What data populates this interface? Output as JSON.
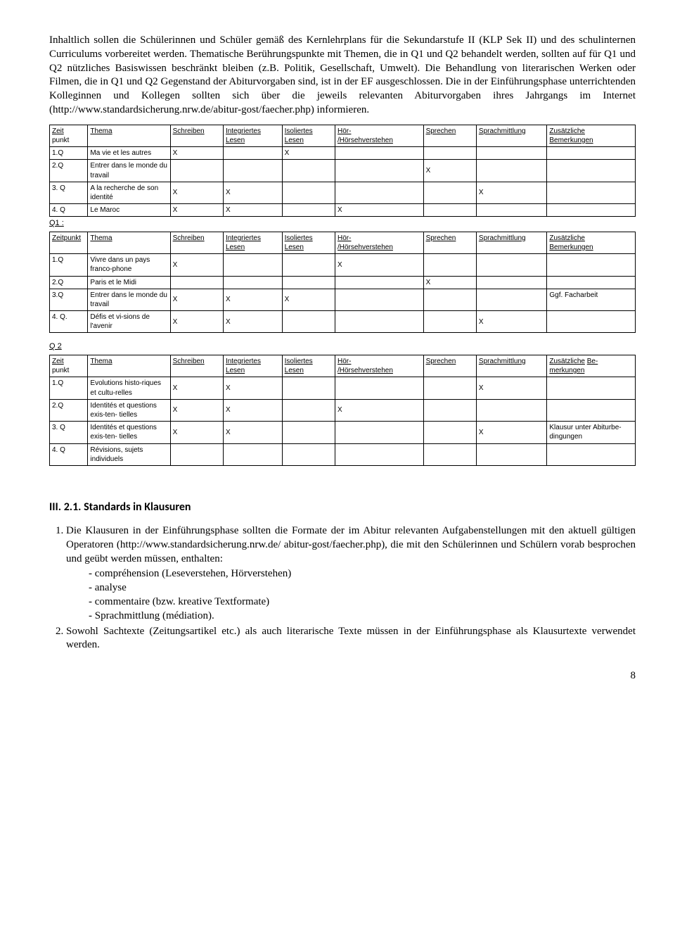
{
  "intro": "Inhaltlich sollen die Schülerinnen und Schüler gemäß des Kernlehrplans für die Sekundarstufe II (KLP Sek II) und des schulinternen Curriculums vorbereitet werden. Thematische Berührungspunkte mit Themen, die in Q1 und Q2 behandelt werden, sollten auf für Q1 und Q2 nützliches Basiswissen beschränkt bleiben (z.B. Politik, Gesellschaft, Umwelt). Die Behandlung von literarischen Werken oder Filmen, die in Q1 und Q2 Gegenstand der Abiturvorgaben sind, ist in der EF ausgeschlossen. Die in der Einführungsphase unterrichtenden Kolleginnen und Kollegen sollten sich über die jeweils relevanten Abiturvorgaben ihres Jahrgangs im Internet (http://www.standardsicherung.nrw.de/abitur-gost/faecher.php) informieren.",
  "headers": {
    "zp": "Zeit\npunkt",
    "zp_full": "Zeitpunkt",
    "thema": "Thema",
    "schreiben": "Schreiben",
    "int_lesen": "Integriertes Lesen",
    "iso_lesen": "Isoliertes Lesen",
    "hoer": "Hör-/Hörsehverstehen",
    "sprechen": "Sprechen",
    "sprachm": "Sprachmittlung",
    "bemerk": "Zusätzliche Bemerkungen",
    "bemerk2": "Zusätzliche Be-merkungen"
  },
  "sections": {
    "q1": "Q1 :",
    "q2": "Q 2"
  },
  "t1": {
    "rows": [
      {
        "zp": "1.Q",
        "thema": "Ma vie et les autres",
        "schr": "X",
        "int": "",
        "iso": "X",
        "hoer": "",
        "spr": "",
        "sm": "",
        "bem": ""
      },
      {
        "zp": "2.Q",
        "thema": "Entrer dans le monde du travail",
        "schr": "",
        "int": "",
        "iso": "",
        "hoer": "",
        "spr": "X",
        "sm": "",
        "bem": ""
      },
      {
        "zp": "3. Q",
        "thema": "A la recherche de son identité",
        "schr": "X",
        "int": "X",
        "iso": "",
        "hoer": "",
        "spr": "",
        "sm": "X",
        "bem": ""
      },
      {
        "zp": "4. Q",
        "thema": "Le Maroc",
        "schr": "X",
        "int": "X",
        "iso": "",
        "hoer": "X",
        "spr": "",
        "sm": "",
        "bem": ""
      }
    ]
  },
  "t2": {
    "rows": [
      {
        "zp": "1.Q",
        "thema": "Vivre dans un pays franco-phone",
        "schr": "X",
        "int": "",
        "iso": "",
        "hoer": "X",
        "spr": "",
        "sm": "",
        "bem": ""
      },
      {
        "zp": "2.Q",
        "thema": "Paris et le Midi",
        "schr": "",
        "int": "",
        "iso": "",
        "hoer": "",
        "spr": "X",
        "sm": "",
        "bem": ""
      },
      {
        "zp": "3.Q",
        "thema": "Entrer dans le monde du travail",
        "schr": "X",
        "int": "X",
        "iso": "X",
        "hoer": "",
        "spr": "",
        "sm": "",
        "bem": "Ggf. Facharbeit"
      },
      {
        "zp": "4. Q.",
        "thema": "Défis et vi-sions de l'avenir",
        "schr": "X",
        "int": "X",
        "iso": "",
        "hoer": "",
        "spr": "",
        "sm": "X",
        "bem": ""
      }
    ]
  },
  "t3": {
    "rows": [
      {
        "zp": "1.Q",
        "thema": "Evolutions histo-riques et cultu-relles",
        "schr": "X",
        "int": "X",
        "iso": "",
        "hoer": "",
        "spr": "",
        "sm": "X",
        "bem": ""
      },
      {
        "zp": "2.Q",
        "thema": "Identités et questions exis-ten-\ntielles",
        "schr": "X",
        "int": "X",
        "iso": "",
        "hoer": "X",
        "spr": "",
        "sm": "",
        "bem": ""
      },
      {
        "zp": "3. Q",
        "thema": "Identités et questions exis-ten-\ntielles",
        "schr": "X",
        "int": "X",
        "iso": "",
        "hoer": "",
        "spr": "",
        "sm": "X",
        "bem": "Klausur unter Abiturbe-\ndingungen"
      },
      {
        "zp": "4. Q",
        "thema": "Révisions, sujets individuels",
        "schr": "",
        "int": "",
        "iso": "",
        "hoer": "",
        "spr": "",
        "sm": "",
        "bem": ""
      }
    ]
  },
  "heading": "III. 2.1. Standards in Klausuren",
  "list": {
    "item1_pre": "Die Klausuren in der Einführungsphase sollten die Formate der im Abitur relevanten Aufgabenstellungen mit den aktuell gültigen Operatoren (http://www.standardsicherung.nrw.de/ abitur-gost/faecher.php), die mit den Schülerinnen und Schülern vorab besprochen und geübt werden müssen, enthalten:",
    "dash1": "compréhension (Leseverstehen, Hörverstehen)",
    "dash2": "analyse",
    "dash3": "commentaire (bzw. kreative Textformate)",
    "dash4": "Sprachmittlung (médiation).",
    "item2": "Sowohl Sachtexte (Zeitungsartikel etc.) als auch literarische Texte müssen in der Einführungsphase als Klausurtexte verwendet werden."
  },
  "pagenum": "8"
}
